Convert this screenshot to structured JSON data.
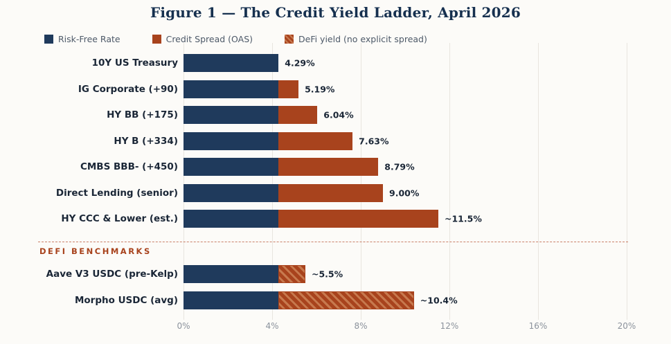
{
  "title": "Figure 1 — The Credit Yield Ladder, April 2026",
  "colors": {
    "navy": "#1f3a5c",
    "rust": "#a8431d",
    "hatch_light": "#c7794e",
    "grid": "#e8e5df",
    "label_text": "#1a2636",
    "legend_text": "#4d5968",
    "tick_text": "#8b929c",
    "title_text": "#16304f",
    "separator": "#b85538",
    "background": "#fcfbf8"
  },
  "chart_data": {
    "type": "bar",
    "orientation": "horizontal",
    "title": "Figure 1 — The Credit Yield Ladder, April 2026",
    "xlabel": "",
    "ylabel": "",
    "xlim": [
      0,
      20
    ],
    "x_tick_labels": [
      "0%",
      "4%",
      "8%",
      "12%",
      "16%",
      "20%"
    ],
    "x_tick_values": [
      0,
      4,
      8,
      12,
      16,
      20
    ],
    "grid": "vertical",
    "legend_position": "top-left",
    "legend": [
      {
        "label": "Risk-Free Rate",
        "swatch": "navy-solid"
      },
      {
        "label": "Credit Spread (OAS)",
        "swatch": "rust-solid"
      },
      {
        "label": "DeFi yield (no explicit spread)",
        "swatch": "rust-hatched"
      }
    ],
    "risk_free_rate": 4.29,
    "separator_label": "DEFI BENCHMARKS",
    "rows": [
      {
        "label": "10Y US Treasury",
        "total": 4.29,
        "value_label": "4.29%",
        "segment": "none",
        "group": "credit"
      },
      {
        "label": "IG Corporate (+90)",
        "total": 5.19,
        "value_label": "5.19%",
        "segment": "credit",
        "group": "credit"
      },
      {
        "label": "HY BB (+175)",
        "total": 6.04,
        "value_label": "6.04%",
        "segment": "credit",
        "group": "credit"
      },
      {
        "label": "HY B (+334)",
        "total": 7.63,
        "value_label": "7.63%",
        "segment": "credit",
        "group": "credit"
      },
      {
        "label": "CMBS BBB- (+450)",
        "total": 8.79,
        "value_label": "8.79%",
        "segment": "credit",
        "group": "credit"
      },
      {
        "label": "Direct Lending (senior)",
        "total": 9.0,
        "value_label": "9.00%",
        "segment": "credit",
        "group": "credit"
      },
      {
        "label": "HY CCC & Lower (est.)",
        "total": 11.5,
        "value_label": "~11.5%",
        "segment": "credit",
        "group": "credit"
      },
      {
        "label": "Aave V3 USDC (pre-Kelp)",
        "total": 5.5,
        "value_label": "~5.5%",
        "segment": "defi",
        "group": "defi"
      },
      {
        "label": "Morpho USDC (avg)",
        "total": 10.4,
        "value_label": "~10.4%",
        "segment": "defi",
        "group": "defi"
      }
    ]
  }
}
